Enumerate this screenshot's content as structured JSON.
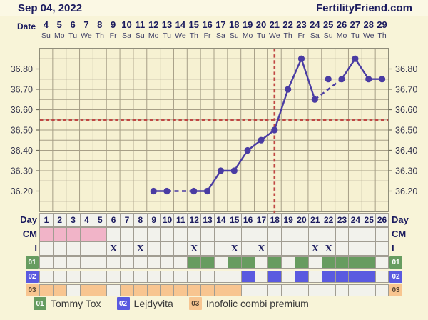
{
  "header": {
    "date": "Sep 04, 2022",
    "brand": "FertilityFriend.com"
  },
  "calendar": {
    "label": "Date",
    "dates": [
      4,
      5,
      6,
      7,
      8,
      9,
      10,
      11,
      12,
      13,
      14,
      15,
      16,
      17,
      18,
      19,
      20,
      21,
      22,
      23,
      24,
      25,
      26,
      27,
      28,
      29
    ],
    "weekdays": [
      "Su",
      "Mo",
      "Tu",
      "We",
      "Th",
      "Fr",
      "Sa",
      "Su",
      "Mo",
      "Tu",
      "We",
      "Th",
      "Fr",
      "Sa",
      "Su",
      "Mo",
      "Tu",
      "We",
      "Th",
      "Fr",
      "Sa",
      "Su",
      "Mo",
      "Tu",
      "We",
      "Th"
    ]
  },
  "chart_data": {
    "type": "line",
    "title": "",
    "xlabel": "",
    "ylabel": "",
    "x_days": [
      1,
      26
    ],
    "ylim": [
      36.1,
      36.9
    ],
    "yticks": [
      36.2,
      36.3,
      36.4,
      36.5,
      36.6,
      36.7,
      36.8
    ],
    "grid_minor_step": 0.05,
    "coverline_temp": 36.55,
    "ovulation_day": 18,
    "points": [
      {
        "day": 9,
        "temp": 36.2
      },
      {
        "day": 10,
        "temp": 36.2
      },
      {
        "day": 12,
        "temp": 36.2
      },
      {
        "day": 13,
        "temp": 36.2
      },
      {
        "day": 14,
        "temp": 36.3
      },
      {
        "day": 15,
        "temp": 36.3
      },
      {
        "day": 16,
        "temp": 36.4
      },
      {
        "day": 17,
        "temp": 36.45
      },
      {
        "day": 18,
        "temp": 36.5
      },
      {
        "day": 19,
        "temp": 36.7
      },
      {
        "day": 20,
        "temp": 36.85
      },
      {
        "day": 21,
        "temp": 36.65
      },
      {
        "day": 22,
        "temp": 36.75,
        "discarded": true
      },
      {
        "day": 23,
        "temp": 36.75
      },
      {
        "day": 24,
        "temp": 36.85
      },
      {
        "day": 25,
        "temp": 36.75
      },
      {
        "day": 26,
        "temp": 36.75
      }
    ],
    "colors": {
      "temp_line": "#4a3ca3",
      "signal_red": "#c04743",
      "grid": "#a79f87",
      "plot_border": "#6f6d5c",
      "tick_text": "#37374f"
    }
  },
  "table": {
    "day_label": "Day",
    "days": [
      1,
      2,
      3,
      4,
      5,
      6,
      7,
      8,
      9,
      10,
      11,
      12,
      13,
      14,
      15,
      16,
      17,
      18,
      19,
      20,
      21,
      22,
      23,
      24,
      25,
      26
    ],
    "cm_label": "CM",
    "cm_menses_days": [
      1,
      2,
      3,
      4,
      5
    ],
    "cm_color": "#f1b4c8",
    "intercourse_label": "I",
    "intercourse_mark": "X",
    "intercourse_days": [
      6,
      8,
      12,
      15,
      17,
      21,
      22
    ],
    "med_rows": [
      {
        "id": "01",
        "name": "Tommy Tox",
        "color": "#679c60",
        "text_color": "#ffffff",
        "days": [
          12,
          13,
          15,
          16,
          18,
          20,
          22,
          23,
          24,
          25
        ]
      },
      {
        "id": "02",
        "name": "Lejdyvita",
        "color": "#5a5ae0",
        "text_color": "#ffffff",
        "days": [
          16,
          18,
          20,
          22,
          23,
          24,
          25
        ]
      },
      {
        "id": "03",
        "name": "Inofolic combi premium",
        "color": "#f8c590",
        "text_color": "#554433",
        "days": [
          1,
          2,
          4,
          5,
          7,
          8,
          9,
          10,
          11,
          12,
          13,
          14,
          15
        ]
      }
    ]
  }
}
